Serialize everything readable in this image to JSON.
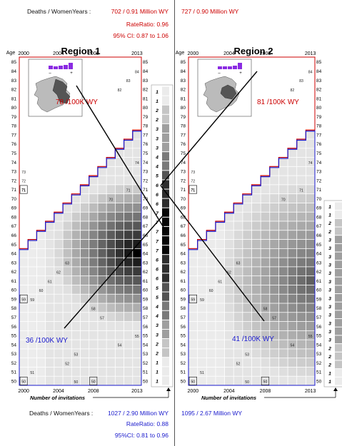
{
  "header": {
    "deaths_label": "Deaths / WomenYears :",
    "top_r1": "702 / 0.91 Million WY",
    "top_r2": "727 / 0.90 Million WY",
    "rate_ratio_top": "RateRatio:  0.96",
    "ci_top": "95% CI: 0.87 to 1.06"
  },
  "footer": {
    "deaths_label": "Deaths / WomenYears :",
    "bottom_r1": "1027 / 2.90 Million WY",
    "bottom_r2": "1095 / 2.67 Million WY",
    "rate_ratio_bottom": "RateRatio:  0.88",
    "ci_bottom": "95%CI: 0.81 to 0.96",
    "invitations_label": "Number of invitations"
  },
  "colors": {
    "red": "#cc0000",
    "blue": "#1a1acc",
    "purple": "#8a2be2",
    "map_grey": "#888888"
  },
  "icons": [
    "ireland-map-icon",
    "bar-histogram-icon"
  ],
  "chart_data": [
    {
      "type": "heatmap",
      "title": "Region 1",
      "x_ticks": [
        "2000",
        "2004",
        "2008",
        "2013"
      ],
      "y_label": "Age",
      "ages": [
        85,
        84,
        83,
        82,
        81,
        80,
        79,
        78,
        77,
        76,
        75,
        74,
        73,
        72,
        71,
        70,
        69,
        68,
        67,
        66,
        65,
        64,
        63,
        62,
        61,
        60,
        59,
        58,
        57,
        56,
        55,
        54,
        53,
        52,
        51,
        50
      ],
      "upper_rate": "78 /100K WY",
      "lower_rate": "36 /100K WY",
      "invitations": [
        "1",
        "1",
        "2",
        "2",
        "3",
        "3",
        "3",
        "4",
        "4",
        "5",
        "6",
        "6",
        "6",
        "7",
        "7",
        "7",
        "7",
        "7",
        "6",
        "6",
        "6",
        "5",
        "5",
        "4",
        "4",
        "3",
        "3",
        "2",
        "2",
        "1",
        "1",
        "1"
      ],
      "age_labels_in_grid": [
        "84",
        "83",
        "82",
        "81",
        "80",
        "79",
        "78",
        "77",
        "76",
        "75",
        "74",
        "73",
        "72",
        "71",
        "70",
        "69",
        "68",
        "67",
        "66",
        "65",
        "64",
        "63",
        "62",
        "61",
        "60",
        "59",
        "58",
        "57",
        "56",
        "55",
        "54",
        "53",
        "52",
        "51",
        "50"
      ],
      "inset_legend": [
        "–",
        "+"
      ]
    },
    {
      "type": "heatmap",
      "title": "Region 2",
      "x_ticks": [
        "2000",
        "2004",
        "2008",
        "2013"
      ],
      "y_label": "Age",
      "ages": [
        85,
        84,
        83,
        82,
        81,
        80,
        79,
        78,
        77,
        76,
        75,
        74,
        73,
        72,
        71,
        70,
        69,
        68,
        67,
        66,
        65,
        64,
        63,
        62,
        61,
        60,
        59,
        58,
        57,
        56,
        55,
        54,
        53,
        52,
        51,
        50
      ],
      "upper_rate": "81 /100K WY",
      "lower_rate": "41 /100K WY",
      "invitations": [
        "1",
        "1",
        "2",
        "2",
        "3",
        "3",
        "3",
        "3",
        "3",
        "3",
        "3",
        "3",
        "3",
        "3",
        "3",
        "3",
        "3",
        "2",
        "2",
        "2",
        "1",
        "1"
      ],
      "inset_legend": [
        "–",
        "+"
      ]
    }
  ]
}
